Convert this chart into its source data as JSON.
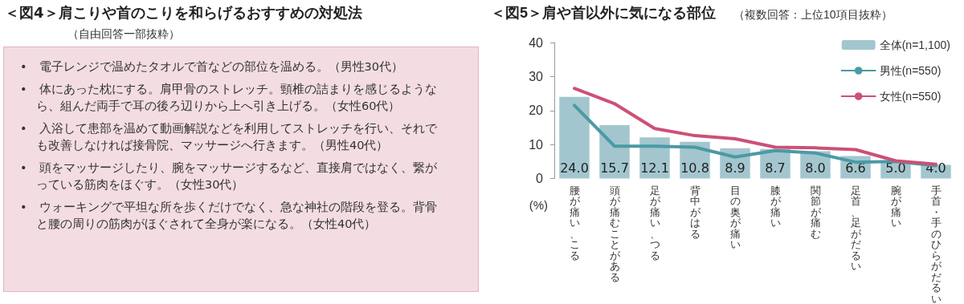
{
  "chart_data": [
    {
      "type": "other",
      "title": "＜図4＞肩こりや首のこりを和らげるおすすめの対処法",
      "subtitle": "（自由回答一部抜粋）",
      "annotations": [
        "•　電子レンジで温めたタオルで首などの部位を温める。（男性30代）",
        "•　体にあった枕にする。肩甲骨のストレッチ。頸椎の詰まりを感じるようなら、組んだ両手で耳の後ろ辺りから上へ引き上げる。（女性60代）",
        "•　入浴して患部を温めて動画解説などを利用してストレッチを行い、それでも改善しなければ接骨院、マッサージへ行きます。（男性40代）",
        "•　頭をマッサージしたり、腕をマッサージするなど、直接肩ではなく、繋がっている筋肉をほぐす。（女性30代）",
        "•　ウォーキングで平坦な所を歩くだけでなく、急な神社の階段を登る。背骨と腰の周りの筋肉がほぐされて全身が楽になる。（女性40代）"
      ]
    },
    {
      "type": "bar",
      "title": "＜図5＞肩や首以外に気になる部位",
      "subtitle": "（複数回答：上位10項目抜粋）",
      "ylabel": "(%)",
      "categories": [
        "腰が痛い、こる",
        "頭が痛むことがある",
        "足が痛い、つる",
        "背中がはる",
        "目の奥が痛い",
        "膝が痛い",
        "関節が痛む",
        "足首、足がだるい",
        "腕が痛い",
        "手首・手のひらがだるい"
      ],
      "ylim": [
        0,
        40
      ],
      "yticks": [
        0,
        10,
        20,
        30,
        40
      ],
      "grid": false,
      "legend": "top right",
      "marker": "none",
      "line_style": "solid",
      "series": [
        {
          "name": "全体(n=1,100)",
          "type": "bar",
          "color": "#a3c6ce",
          "values": [
            24.0,
            15.7,
            12.1,
            10.8,
            8.9,
            8.7,
            8.0,
            6.6,
            5.0,
            4.0
          ],
          "value_labels": [
            "24.0",
            "15.7",
            "12.1",
            "10.8",
            "8.9",
            "8.7",
            "8.0",
            "6.6",
            "5.0",
            "4.0"
          ]
        },
        {
          "name": "男性(n=550)",
          "type": "line",
          "color": "#4b9aa4",
          "values": [
            21.5,
            9.5,
            9.5,
            9.2,
            6.3,
            8.2,
            7.5,
            4.8,
            5.0,
            3.8
          ]
        },
        {
          "name": "女性(n=550)",
          "type": "line",
          "color": "#cc5077",
          "values": [
            26.5,
            22.0,
            14.7,
            12.6,
            11.7,
            9.2,
            9.0,
            8.5,
            5.2,
            4.2
          ]
        }
      ]
    }
  ]
}
